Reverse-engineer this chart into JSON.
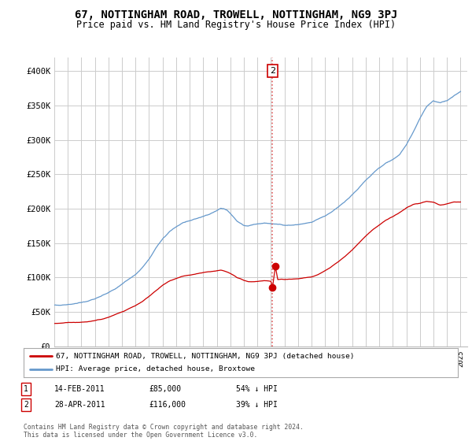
{
  "title": "67, NOTTINGHAM ROAD, TROWELL, NOTTINGHAM, NG9 3PJ",
  "subtitle": "Price paid vs. HM Land Registry's House Price Index (HPI)",
  "title_fontsize": 10,
  "subtitle_fontsize": 8.5,
  "background_color": "#ffffff",
  "grid_color": "#cccccc",
  "plot_bg": "#ffffff",
  "ylim": [
    0,
    420000
  ],
  "yticks": [
    0,
    50000,
    100000,
    150000,
    200000,
    250000,
    300000,
    350000,
    400000
  ],
  "ytick_labels": [
    "£0",
    "£50K",
    "£100K",
    "£150K",
    "£200K",
    "£250K",
    "£300K",
    "£350K",
    "£400K"
  ],
  "year_start": 1995,
  "year_end": 2025,
  "hpi_color": "#6699cc",
  "price_color": "#cc0000",
  "vline_color": "#dd4444",
  "vline_style": ":",
  "marker_color": "#cc0000",
  "sale1_year": 2011.11,
  "sale1_price": 85000,
  "sale2_year": 2011.33,
  "sale2_price": 116000,
  "vline_x": 2011.11,
  "legend_label_red": "67, NOTTINGHAM ROAD, TROWELL, NOTTINGHAM, NG9 3PJ (detached house)",
  "legend_label_blue": "HPI: Average price, detached house, Broxtowe",
  "table_rows": [
    {
      "num": "1",
      "date": "14-FEB-2011",
      "price": "£85,000",
      "hpi": "54% ↓ HPI"
    },
    {
      "num": "2",
      "date": "28-APR-2011",
      "price": "£116,000",
      "hpi": "39% ↓ HPI"
    }
  ],
  "footnote": "Contains HM Land Registry data © Crown copyright and database right 2024.\nThis data is licensed under the Open Government Licence v3.0.",
  "hpi_points": [
    [
      1995.0,
      63000
    ],
    [
      1995.5,
      63500
    ],
    [
      1996.0,
      64500
    ],
    [
      1996.5,
      65500
    ],
    [
      1997.0,
      67000
    ],
    [
      1997.5,
      69000
    ],
    [
      1998.0,
      72000
    ],
    [
      1998.5,
      76000
    ],
    [
      1999.0,
      81000
    ],
    [
      1999.5,
      87000
    ],
    [
      2000.0,
      94000
    ],
    [
      2000.5,
      101000
    ],
    [
      2001.0,
      108000
    ],
    [
      2001.5,
      118000
    ],
    [
      2002.0,
      130000
    ],
    [
      2002.5,
      145000
    ],
    [
      2003.0,
      158000
    ],
    [
      2003.5,
      168000
    ],
    [
      2004.0,
      175000
    ],
    [
      2004.5,
      180000
    ],
    [
      2005.0,
      183000
    ],
    [
      2005.5,
      186000
    ],
    [
      2006.0,
      189000
    ],
    [
      2006.5,
      193000
    ],
    [
      2007.0,
      197000
    ],
    [
      2007.3,
      200000
    ],
    [
      2007.5,
      199000
    ],
    [
      2007.8,
      196000
    ],
    [
      2008.0,
      192000
    ],
    [
      2008.3,
      186000
    ],
    [
      2008.5,
      181000
    ],
    [
      2008.8,
      177000
    ],
    [
      2009.0,
      174000
    ],
    [
      2009.3,
      173000
    ],
    [
      2009.5,
      174000
    ],
    [
      2009.8,
      175000
    ],
    [
      2010.0,
      176000
    ],
    [
      2010.3,
      177000
    ],
    [
      2010.5,
      177500
    ],
    [
      2010.8,
      177000
    ],
    [
      2011.0,
      176500
    ],
    [
      2011.3,
      176000
    ],
    [
      2011.5,
      175500
    ],
    [
      2011.8,
      175000
    ],
    [
      2012.0,
      174000
    ],
    [
      2012.5,
      174500
    ],
    [
      2013.0,
      175500
    ],
    [
      2013.5,
      177000
    ],
    [
      2014.0,
      179000
    ],
    [
      2014.5,
      183000
    ],
    [
      2015.0,
      188000
    ],
    [
      2015.5,
      194000
    ],
    [
      2016.0,
      201000
    ],
    [
      2016.5,
      209000
    ],
    [
      2017.0,
      218000
    ],
    [
      2017.5,
      228000
    ],
    [
      2018.0,
      238000
    ],
    [
      2018.5,
      248000
    ],
    [
      2019.0,
      257000
    ],
    [
      2019.5,
      264000
    ],
    [
      2020.0,
      269000
    ],
    [
      2020.5,
      277000
    ],
    [
      2021.0,
      291000
    ],
    [
      2021.5,
      310000
    ],
    [
      2022.0,
      330000
    ],
    [
      2022.5,
      347000
    ],
    [
      2023.0,
      355000
    ],
    [
      2023.5,
      352000
    ],
    [
      2024.0,
      355000
    ],
    [
      2024.5,
      362000
    ],
    [
      2025.0,
      368000
    ]
  ],
  "price_points": [
    [
      1995.0,
      30000
    ],
    [
      1995.5,
      30500
    ],
    [
      1996.0,
      31000
    ],
    [
      1996.5,
      31500
    ],
    [
      1997.0,
      32500
    ],
    [
      1997.5,
      33500
    ],
    [
      1998.0,
      35000
    ],
    [
      1998.5,
      37000
    ],
    [
      1999.0,
      40000
    ],
    [
      1999.5,
      44000
    ],
    [
      2000.0,
      48000
    ],
    [
      2000.5,
      53000
    ],
    [
      2001.0,
      58000
    ],
    [
      2001.5,
      64000
    ],
    [
      2002.0,
      72000
    ],
    [
      2002.5,
      80000
    ],
    [
      2003.0,
      88000
    ],
    [
      2003.5,
      94000
    ],
    [
      2004.0,
      98000
    ],
    [
      2004.5,
      101000
    ],
    [
      2005.0,
      103000
    ],
    [
      2005.5,
      105000
    ],
    [
      2006.0,
      107000
    ],
    [
      2006.5,
      108000
    ],
    [
      2007.0,
      109000
    ],
    [
      2007.3,
      110000
    ],
    [
      2007.5,
      109000
    ],
    [
      2007.8,
      107000
    ],
    [
      2008.0,
      105000
    ],
    [
      2008.3,
      102000
    ],
    [
      2008.5,
      99000
    ],
    [
      2008.8,
      97000
    ],
    [
      2009.0,
      95000
    ],
    [
      2009.3,
      93000
    ],
    [
      2009.5,
      93000
    ],
    [
      2009.8,
      93500
    ],
    [
      2010.0,
      94000
    ],
    [
      2010.3,
      95000
    ],
    [
      2010.5,
      95500
    ],
    [
      2010.8,
      95000
    ],
    [
      2011.0,
      94500
    ],
    [
      2011.11,
      85000
    ],
    [
      2011.33,
      116000
    ],
    [
      2011.5,
      97000
    ],
    [
      2011.8,
      97500
    ],
    [
      2012.0,
      97000
    ],
    [
      2012.5,
      97500
    ],
    [
      2013.0,
      98500
    ],
    [
      2013.5,
      100000
    ],
    [
      2014.0,
      102000
    ],
    [
      2014.5,
      106000
    ],
    [
      2015.0,
      111000
    ],
    [
      2015.5,
      117000
    ],
    [
      2016.0,
      124000
    ],
    [
      2016.5,
      132000
    ],
    [
      2017.0,
      141000
    ],
    [
      2017.5,
      151000
    ],
    [
      2018.0,
      161000
    ],
    [
      2018.5,
      170000
    ],
    [
      2019.0,
      178000
    ],
    [
      2019.5,
      185000
    ],
    [
      2020.0,
      190000
    ],
    [
      2020.5,
      196000
    ],
    [
      2021.0,
      203000
    ],
    [
      2021.5,
      208000
    ],
    [
      2022.0,
      210000
    ],
    [
      2022.5,
      213000
    ],
    [
      2023.0,
      212000
    ],
    [
      2023.5,
      207000
    ],
    [
      2024.0,
      209000
    ],
    [
      2024.5,
      212000
    ],
    [
      2025.0,
      212000
    ]
  ]
}
